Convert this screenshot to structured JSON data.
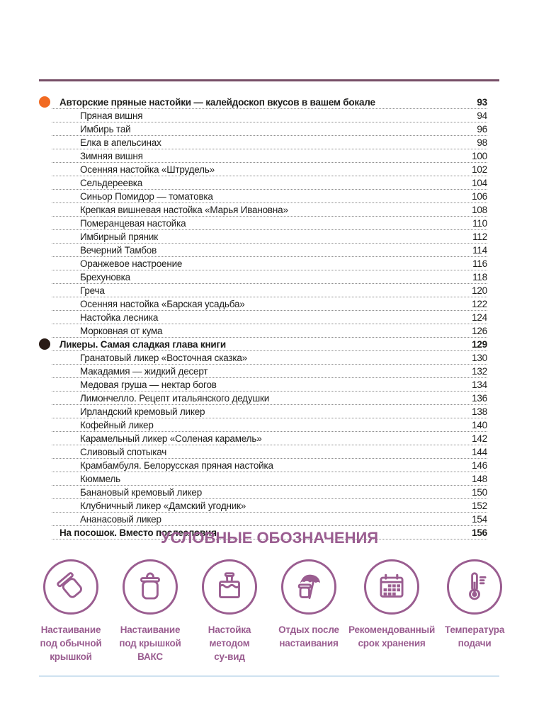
{
  "page": {
    "top_rule_color": "#764e66",
    "bottom_rule_color": "#cfe2f0",
    "text_color": "#1d1d1b",
    "dot_leader_color": "#8c8c8c"
  },
  "toc": {
    "bullet_colors": {
      "orange": "#f16a22",
      "dark": "#2a1b16"
    },
    "rows": [
      {
        "type": "chapter",
        "bullet": "orange",
        "title": "Авторские пряные настойки — калейдоскоп вкусов в вашем бокале",
        "page": "93"
      },
      {
        "type": "entry",
        "title": "Пряная вишня",
        "page": "94"
      },
      {
        "type": "entry",
        "title": "Имбирь тай",
        "page": "96"
      },
      {
        "type": "entry",
        "title": "Елка в апельсинах",
        "page": "98"
      },
      {
        "type": "entry",
        "title": "Зимняя вишня",
        "page": "100"
      },
      {
        "type": "entry",
        "title": "Осенняя настойка «Штрудель»",
        "page": "102"
      },
      {
        "type": "entry",
        "title": "Сельдереевка",
        "page": "104"
      },
      {
        "type": "entry",
        "title": "Синьор Помидор — томатовка",
        "page": "106"
      },
      {
        "type": "entry",
        "title": "Крепкая вишневая настойка «Марья Ивановна»",
        "page": "108"
      },
      {
        "type": "entry",
        "title": "Померанцевая настойка",
        "page": "110"
      },
      {
        "type": "entry",
        "title": "Имбирный пряник",
        "page": "112"
      },
      {
        "type": "entry",
        "title": "Вечерний Тамбов",
        "page": "114"
      },
      {
        "type": "entry",
        "title": "Оранжевое настроение",
        "page": "116"
      },
      {
        "type": "entry",
        "title": "Брехуновка",
        "page": "118"
      },
      {
        "type": "entry",
        "title": "Греча",
        "page": "120"
      },
      {
        "type": "entry",
        "title": "Осенняя настойка «Барская усадьба»",
        "page": "122"
      },
      {
        "type": "entry",
        "title": "Настойка лесника",
        "page": "124"
      },
      {
        "type": "entry",
        "title": "Морковная от кума",
        "page": "126"
      },
      {
        "type": "chapter",
        "bullet": "dark",
        "title": "Ликеры. Самая сладкая глава книги",
        "page": "129"
      },
      {
        "type": "entry",
        "title": "Гранатовый ликер «Восточная сказка»",
        "page": "130"
      },
      {
        "type": "entry",
        "title": "Макадамия — жидкий десерт",
        "page": "132"
      },
      {
        "type": "entry",
        "title": "Медовая груша — нектар богов",
        "page": "134"
      },
      {
        "type": "entry",
        "title": "Лимончелло. Рецепт итальянского дедушки",
        "page": "136"
      },
      {
        "type": "entry",
        "title": "Ирландский кремовый ликер",
        "page": "138"
      },
      {
        "type": "entry",
        "title": "Кофейный ликер",
        "page": "140"
      },
      {
        "type": "entry",
        "title": "Карамельный ликер «Соленая карамель»",
        "page": "142"
      },
      {
        "type": "entry",
        "title": "Сливовый спотыкач",
        "page": "144"
      },
      {
        "type": "entry",
        "title": "Крамбамбуля. Белорусская пряная настойка",
        "page": "146"
      },
      {
        "type": "entry",
        "title": "Кюммель",
        "page": "148"
      },
      {
        "type": "entry",
        "title": "Банановый кремовый ликер",
        "page": "150"
      },
      {
        "type": "entry",
        "title": "Клубничный ликер «Дамский угодник»",
        "page": "152"
      },
      {
        "type": "entry",
        "title": "Ананасовый ликер",
        "page": "154"
      },
      {
        "type": "footer",
        "title": "На посошок. Вместо послесловия",
        "page": "156"
      }
    ]
  },
  "legend": {
    "title": "УСЛОВНЫЕ ОБОЗНАЧЕНИЯ",
    "accent_color": "#9a5d90",
    "items": [
      {
        "icon": "jar-tilted-icon",
        "lines": [
          "Настаивание",
          "под обычной",
          "крышкой"
        ]
      },
      {
        "icon": "jar-vacuum-lid-icon",
        "lines": [
          "Настаивание",
          "под крышкой",
          "ВАКС"
        ]
      },
      {
        "icon": "sous-vide-icon",
        "lines": [
          "Настойка",
          "методом",
          "су-вид"
        ]
      },
      {
        "icon": "jar-umbrella-icon",
        "lines": [
          "Отдых после",
          "настаивания"
        ]
      },
      {
        "icon": "calendar-icon",
        "lines": [
          "Рекомендованный",
          "срок хранения"
        ]
      },
      {
        "icon": "thermometer-icon",
        "lines": [
          "Температура",
          "подачи"
        ]
      }
    ]
  }
}
